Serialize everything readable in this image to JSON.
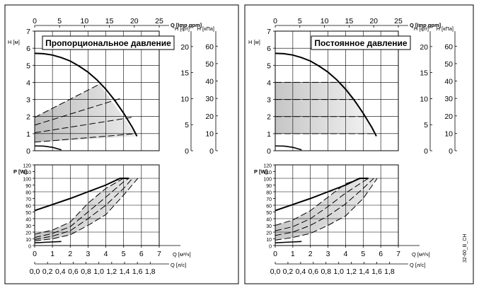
{
  "figure_code": "32-60_B_CH",
  "chart_data": [
    {
      "type": "line",
      "title": "Пропорциональное давление",
      "mode": "proportional",
      "upper": {
        "x_axis": {
          "label": "Q [м³/ч]",
          "range": [
            0,
            7
          ],
          "ticks": [
            0,
            1,
            2,
            3,
            4,
            5,
            6,
            7
          ]
        },
        "x_top_axis": {
          "label": "Q [Imp gpm]",
          "range": [
            0,
            25
          ],
          "ticks": [
            0,
            5,
            10,
            15,
            20,
            25
          ]
        },
        "y_axis": {
          "label": "H [м]",
          "range": [
            0,
            7
          ],
          "ticks": [
            0,
            1,
            2,
            3,
            4,
            5,
            6,
            7
          ]
        },
        "y_right_axes": [
          {
            "label": "H [фт]",
            "ticks": [
              0,
              5,
              10,
              15,
              20
            ]
          },
          {
            "label": "H [кПа]",
            "ticks": [
              0,
              10,
              20,
              30,
              40,
              50,
              60
            ]
          }
        ],
        "series": [
          {
            "style": "solid",
            "x": [
              0,
              0.5,
              1.0,
              1.5,
              2.0,
              2.5,
              3.0,
              3.5,
              4.0,
              4.5,
              5.0,
              5.5,
              5.75
            ],
            "y": [
              5.7,
              5.68,
              5.6,
              5.45,
              5.25,
              4.95,
              4.6,
              4.15,
              3.6,
              2.95,
              2.2,
              1.35,
              0.85
            ]
          },
          {
            "style": "solid",
            "x": [
              0,
              0.5,
              1.0,
              1.5
            ],
            "y": [
              0.28,
              0.27,
              0.2,
              0.05
            ]
          },
          {
            "style": "dashed",
            "x": [
              0,
              3.65
            ],
            "y": [
              1.95,
              3.9
            ]
          },
          {
            "style": "dashed",
            "x": [
              0,
              4.8
            ],
            "y": [
              1.5,
              3.05
            ]
          },
          {
            "style": "dashed",
            "x": [
              0,
              5.45
            ],
            "y": [
              1.05,
              1.95
            ]
          },
          {
            "style": "dashed",
            "x": [
              0,
              5.7
            ],
            "y": [
              0.5,
              1.0
            ]
          }
        ],
        "shaded_region": {
          "x": [
            0,
            3.65,
            5.75,
            0
          ],
          "y": [
            1.95,
            3.9,
            0.85,
            0.5
          ]
        }
      },
      "lower": {
        "x_axis": {
          "label": "Q [м³/ч]",
          "range": [
            0,
            7
          ],
          "ticks": [
            0,
            1,
            2,
            3,
            4,
            5,
            6,
            7
          ]
        },
        "x_bottom_axis": {
          "label": "Q [л/с]",
          "range": [
            0,
            1.94
          ],
          "ticks": [
            "0,0",
            "0,2",
            "0,4",
            "0,6",
            "0,8",
            "1,0",
            "1,2",
            "1,4",
            "1,6",
            "1,8"
          ]
        },
        "y_axis": {
          "label": "P [W]",
          "range": [
            0,
            120
          ],
          "ticks": [
            0,
            10,
            20,
            30,
            40,
            50,
            60,
            70,
            80,
            90,
            100,
            110,
            120
          ]
        },
        "series": [
          {
            "style": "solid",
            "x": [
              0,
              1.0,
              2.0,
              3.0,
              4.0,
              4.8,
              5.3
            ],
            "y": [
              52,
              61,
              70,
              80,
              90,
              100,
              100
            ]
          },
          {
            "style": "solid",
            "x": [
              0,
              0.7,
              1.5
            ],
            "y": [
              4,
              5,
              6
            ]
          },
          {
            "style": "dashed",
            "x": [
              0,
              1.0,
              2.0,
              3.0,
              4.0,
              5.0
            ],
            "y": [
              17,
              23,
              35,
              63,
              85,
              100
            ]
          },
          {
            "style": "dashed",
            "x": [
              0,
              1.0,
              2.0,
              3.0,
              4.0,
              5.0,
              5.3
            ],
            "y": [
              12,
              18,
              28,
              50,
              72,
              95,
              100
            ]
          },
          {
            "style": "dashed",
            "x": [
              0,
              1.0,
              2.0,
              3.0,
              4.0,
              5.0,
              5.5
            ],
            "y": [
              9,
              14,
              22,
              40,
              60,
              85,
              100
            ]
          },
          {
            "style": "dashed",
            "x": [
              0,
              1.0,
              2.0,
              3.0,
              4.0,
              5.0,
              5.8
            ],
            "y": [
              7,
              10,
              16,
              30,
              46,
              75,
              100
            ]
          }
        ],
        "shaded_region": {
          "x": [
            0,
            1.0,
            2.0,
            3.0,
            4.0,
            4.8,
            5.8,
            5.0,
            4.0,
            3.0,
            2.0,
            1.0,
            0
          ],
          "y": [
            17,
            23,
            35,
            63,
            85,
            100,
            100,
            75,
            46,
            30,
            16,
            10,
            7
          ]
        }
      }
    },
    {
      "type": "line",
      "title": "Постоянное давление",
      "mode": "constant",
      "upper": {
        "x_axis": {
          "label": "Q [м³/ч]",
          "range": [
            0,
            7
          ],
          "ticks": [
            0,
            1,
            2,
            3,
            4,
            5,
            6,
            7
          ]
        },
        "x_top_axis": {
          "label": "Q [Imp gpm]",
          "range": [
            0,
            25
          ],
          "ticks": [
            0,
            5,
            10,
            15,
            20,
            25
          ]
        },
        "y_axis": {
          "label": "H [м]",
          "range": [
            0,
            7
          ],
          "ticks": [
            0,
            1,
            2,
            3,
            4,
            5,
            6,
            7
          ]
        },
        "y_right_axes": [
          {
            "label": "H [фт]",
            "ticks": [
              0,
              5,
              10,
              15,
              20
            ]
          },
          {
            "label": "H [кПа]",
            "ticks": [
              0,
              10,
              20,
              30,
              40,
              50,
              60
            ]
          }
        ],
        "series": [
          {
            "style": "solid",
            "x": [
              0,
              0.5,
              1.0,
              1.5,
              2.0,
              2.5,
              3.0,
              3.5,
              4.0,
              4.5,
              5.0,
              5.5,
              5.75
            ],
            "y": [
              5.7,
              5.68,
              5.6,
              5.45,
              5.25,
              4.95,
              4.6,
              4.15,
              3.6,
              2.95,
              2.2,
              1.35,
              0.85
            ]
          },
          {
            "style": "solid",
            "x": [
              0,
              0.5,
              1.0,
              1.5
            ],
            "y": [
              0.28,
              0.27,
              0.2,
              0.05
            ]
          },
          {
            "style": "dashed",
            "x": [
              0,
              4.25
            ],
            "y": [
              4.0,
              4.0
            ]
          },
          {
            "style": "dashed",
            "x": [
              0,
              4.8
            ],
            "y": [
              3.0,
              3.0
            ]
          },
          {
            "style": "dashed",
            "x": [
              0,
              5.25
            ],
            "y": [
              2.0,
              2.0
            ]
          },
          {
            "style": "dashed",
            "x": [
              0,
              5.6
            ],
            "y": [
              1.0,
              1.0
            ]
          }
        ],
        "shaded_region": {
          "x": [
            0,
            4.0,
            4.5,
            5.0,
            5.5,
            5.6,
            0
          ],
          "y": [
            4.0,
            4.0,
            3.0,
            2.2,
            1.35,
            1.0,
            1.0
          ]
        }
      },
      "lower": {
        "x_axis": {
          "label": "Q [м³/ч]",
          "range": [
            0,
            7
          ],
          "ticks": [
            0,
            1,
            2,
            3,
            4,
            5,
            6,
            7
          ]
        },
        "x_bottom_axis": {
          "label": "Q [л/с]",
          "range": [
            0,
            1.94
          ],
          "ticks": [
            "0,0",
            "0,2",
            "0,4",
            "0,6",
            "0,8",
            "1,0",
            "1,2",
            "1,4",
            "1,6",
            "1,8"
          ]
        },
        "y_axis": {
          "label": "P [W]",
          "range": [
            0,
            120
          ],
          "ticks": [
            0,
            10,
            20,
            30,
            40,
            50,
            60,
            70,
            80,
            90,
            100,
            110,
            120
          ]
        },
        "series": [
          {
            "style": "solid",
            "x": [
              0,
              1.0,
              2.0,
              3.0,
              4.0,
              4.8,
              5.3
            ],
            "y": [
              52,
              61,
              70,
              80,
              90,
              100,
              100
            ]
          },
          {
            "style": "solid",
            "x": [
              0,
              0.7,
              1.5
            ],
            "y": [
              4,
              5,
              6
            ]
          },
          {
            "style": "dashed",
            "x": [
              0,
              1.0,
              2.0,
              3.0,
              4.0,
              4.9
            ],
            "y": [
              30,
              38,
              52,
              72,
              92,
              100
            ]
          },
          {
            "style": "dashed",
            "x": [
              0,
              1.0,
              2.0,
              3.0,
              4.0,
              5.0,
              5.3
            ],
            "y": [
              22,
              28,
              40,
              58,
              78,
              95,
              100
            ]
          },
          {
            "style": "dashed",
            "x": [
              0,
              1.0,
              2.0,
              3.0,
              4.0,
              5.0,
              5.6
            ],
            "y": [
              15,
              20,
              30,
              44,
              62,
              85,
              100
            ]
          },
          {
            "style": "dashed",
            "x": [
              0,
              1.0,
              2.0,
              3.0,
              4.0,
              5.0,
              5.8
            ],
            "y": [
              8,
              12,
              18,
              30,
              44,
              70,
              100
            ]
          }
        ],
        "shaded_region": {
          "x": [
            0,
            1.0,
            2.0,
            3.0,
            4.0,
            4.9,
            5.8,
            5.0,
            4.0,
            3.0,
            2.0,
            1.0,
            0
          ],
          "y": [
            30,
            38,
            52,
            72,
            92,
            100,
            100,
            70,
            44,
            30,
            18,
            12,
            8
          ]
        }
      }
    }
  ]
}
